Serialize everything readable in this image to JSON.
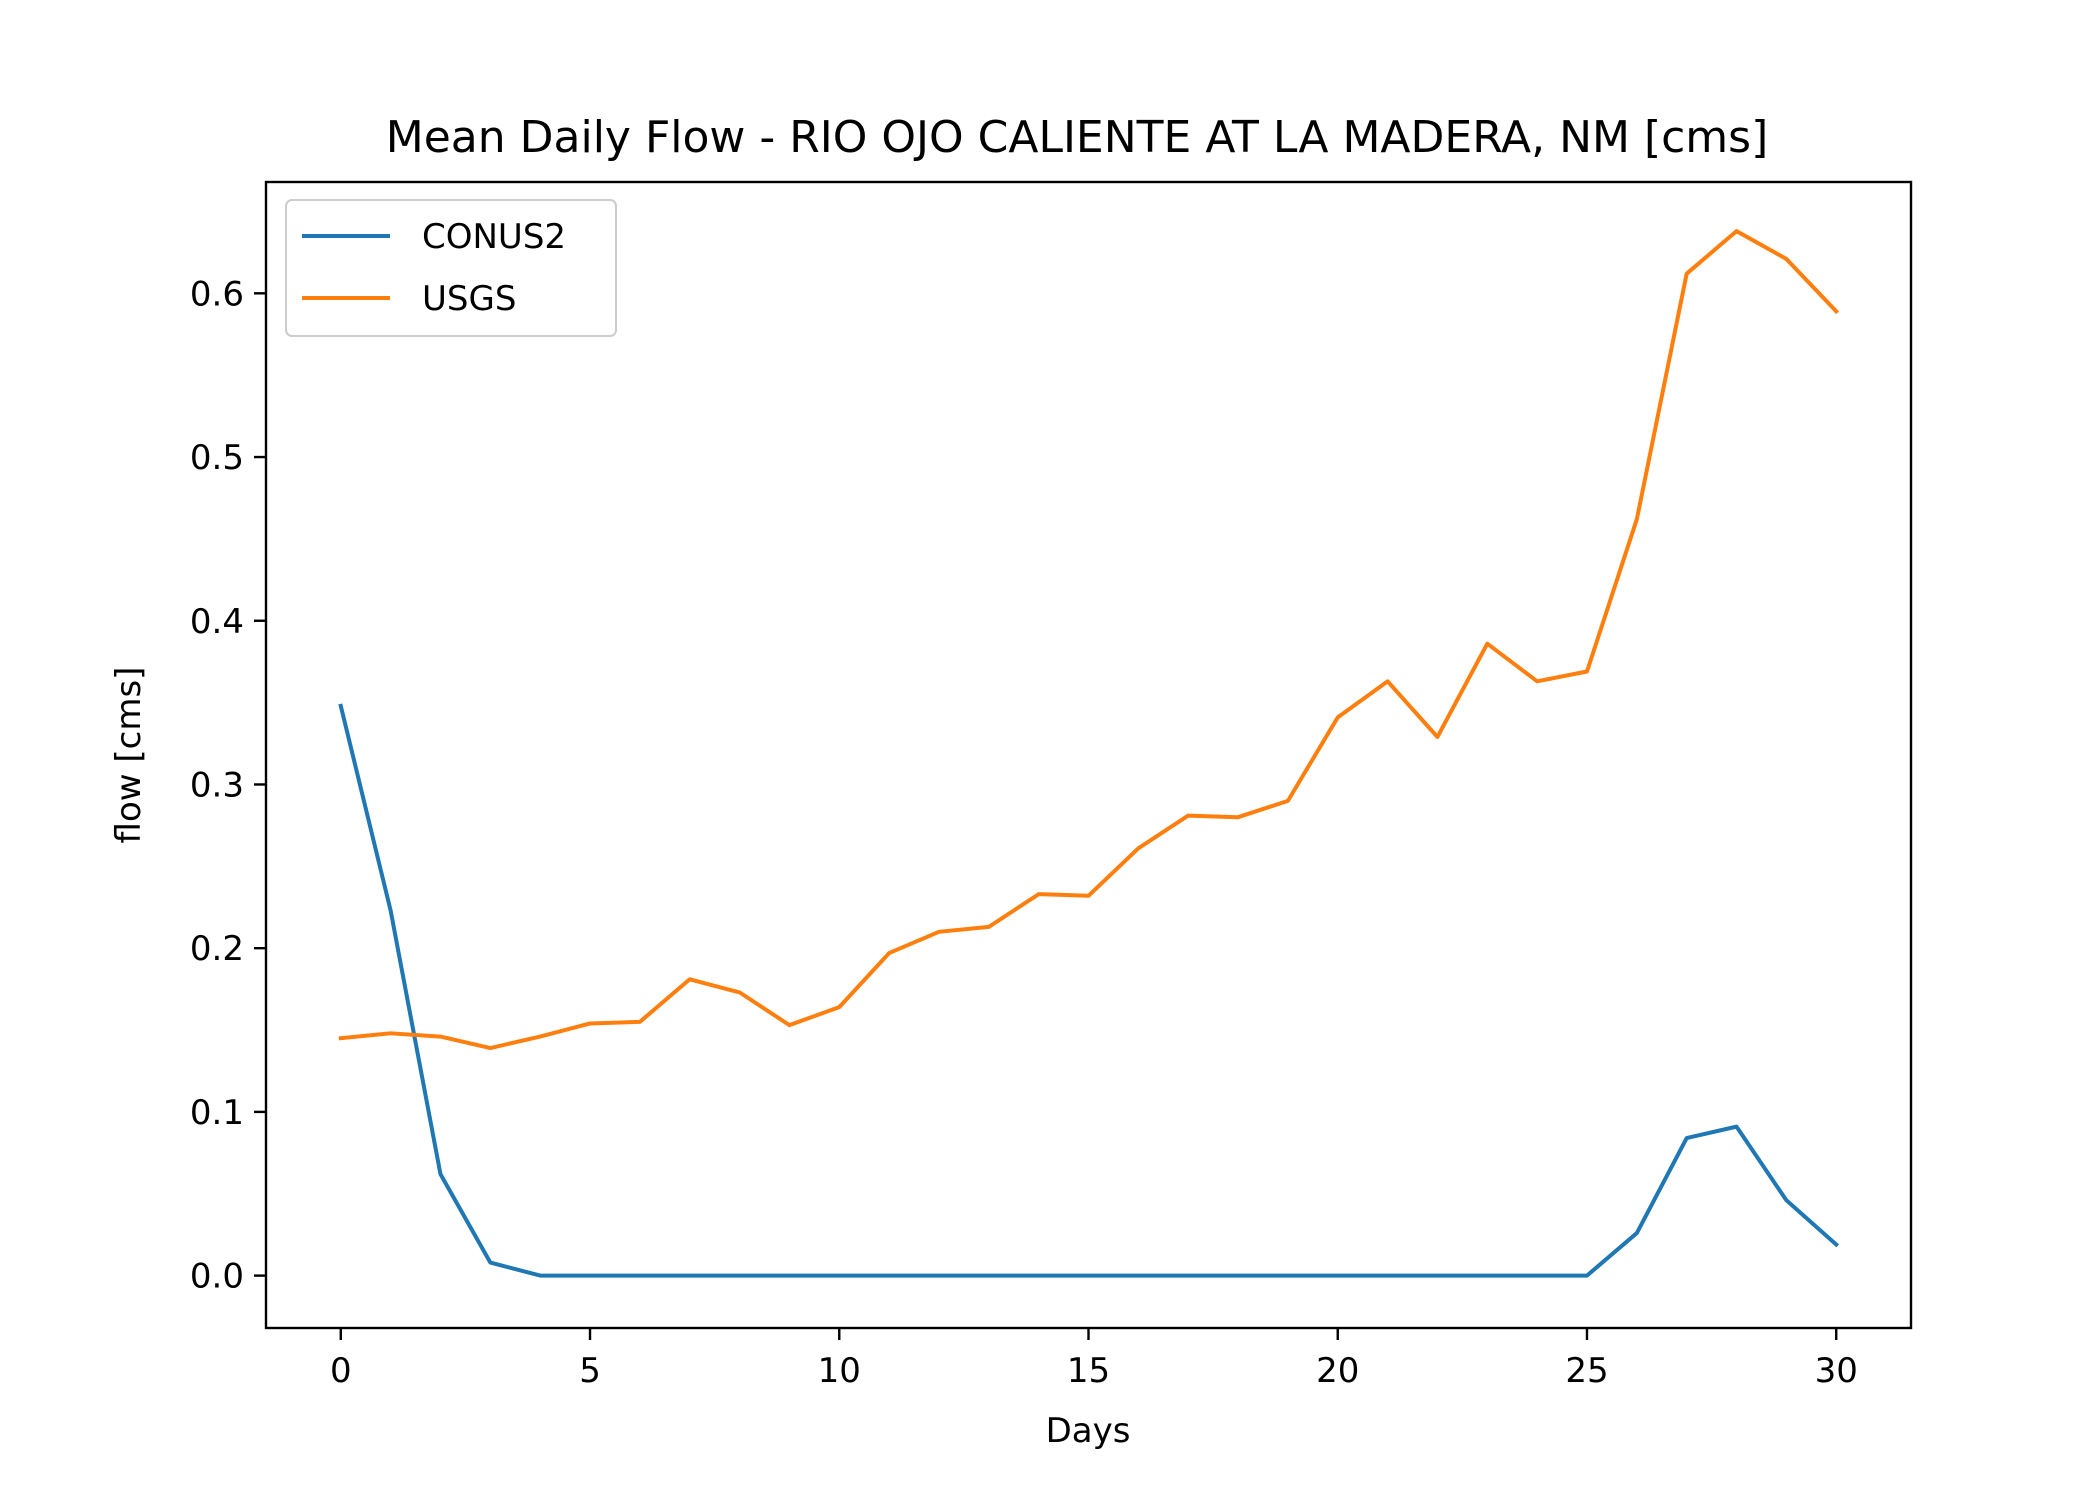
{
  "chart_data": {
    "type": "line",
    "title": "Mean Daily Flow - RIO OJO CALIENTE AT LA MADERA, NM [cms]",
    "xlabel": "Days",
    "ylabel": "flow [cms]",
    "xlim": [
      -1.5,
      31.5
    ],
    "ylim": [
      -0.032,
      0.668
    ],
    "xticks": [
      0,
      5,
      10,
      15,
      20,
      25,
      30
    ],
    "yticks": [
      0.0,
      0.1,
      0.2,
      0.3,
      0.4,
      0.5,
      0.6
    ],
    "xtick_labels": [
      "0",
      "5",
      "10",
      "15",
      "20",
      "25",
      "30"
    ],
    "ytick_labels": [
      "0.0",
      "0.1",
      "0.2",
      "0.3",
      "0.4",
      "0.5",
      "0.6"
    ],
    "grid": false,
    "legend_position": "top-left",
    "x": [
      0,
      1,
      2,
      3,
      4,
      5,
      6,
      7,
      8,
      9,
      10,
      11,
      12,
      13,
      14,
      15,
      16,
      17,
      18,
      19,
      20,
      21,
      22,
      23,
      24,
      25,
      26,
      27,
      28,
      29,
      30
    ],
    "series": [
      {
        "name": "CONUS2",
        "color": "#1f77b4",
        "values": [
          0.348,
          0.223,
          0.062,
          0.008,
          0.0,
          0.0,
          0.0,
          0.0,
          0.0,
          0.0,
          0.0,
          0.0,
          0.0,
          0.0,
          0.0,
          0.0,
          0.0,
          0.0,
          0.0,
          0.0,
          0.0,
          0.0,
          0.0,
          0.0,
          0.0,
          0.0,
          0.026,
          0.084,
          0.091,
          0.046,
          0.019
        ]
      },
      {
        "name": "USGS",
        "color": "#ff7f0e",
        "values": [
          0.145,
          0.148,
          0.146,
          0.139,
          0.146,
          0.154,
          0.155,
          0.181,
          0.173,
          0.153,
          0.164,
          0.197,
          0.21,
          0.213,
          0.233,
          0.232,
          0.261,
          0.281,
          0.28,
          0.29,
          0.341,
          0.363,
          0.329,
          0.386,
          0.363,
          0.369,
          0.462,
          0.612,
          0.638,
          0.621,
          0.589
        ]
      }
    ]
  }
}
